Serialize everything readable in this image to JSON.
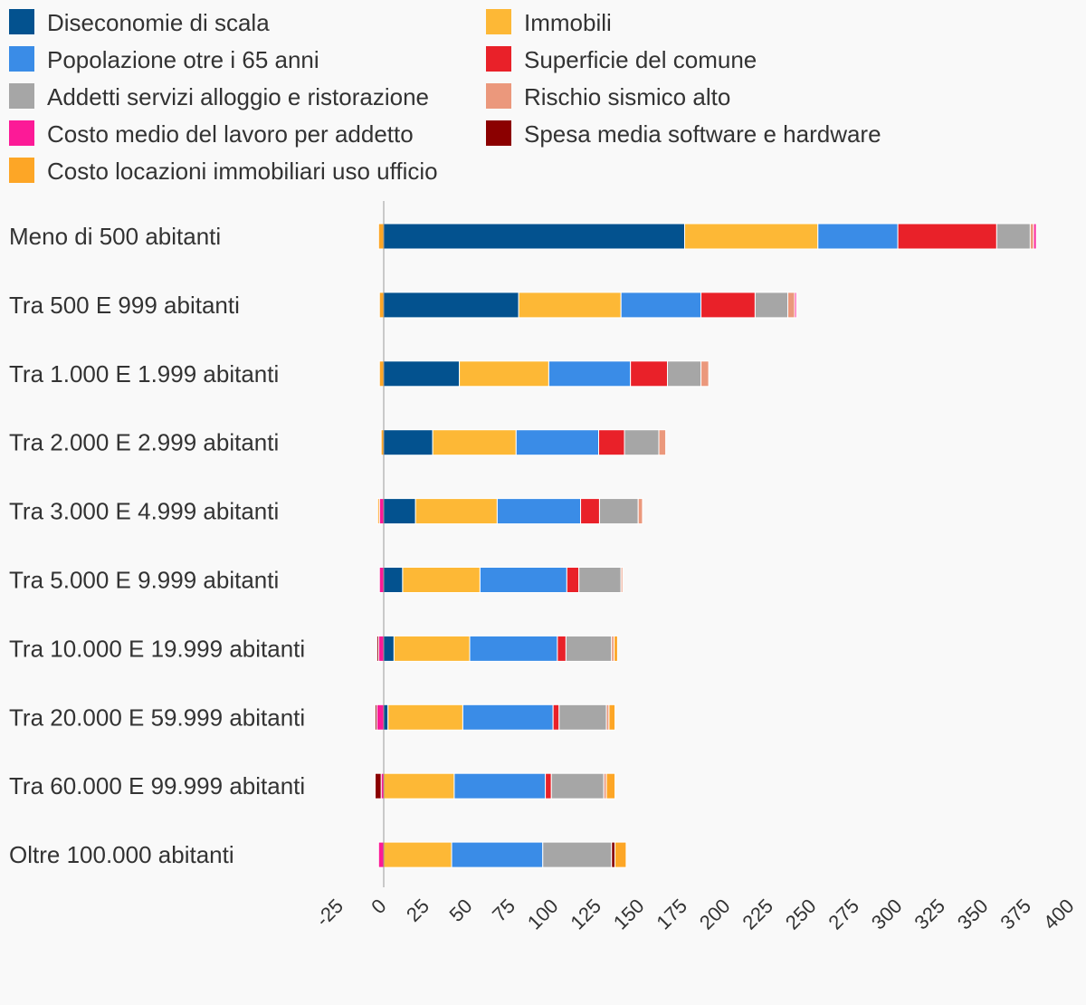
{
  "chart_data": {
    "type": "bar",
    "orientation": "horizontal",
    "stacked": true,
    "title": "",
    "xlabel": "",
    "ylabel": "",
    "xlim": [
      -25,
      400
    ],
    "ticks": [
      "-25",
      "0",
      "25",
      "50",
      "75",
      "100",
      "125",
      "150",
      "175",
      "200",
      "225",
      "250",
      "275",
      "300",
      "325",
      "350",
      "375",
      "400"
    ],
    "grid": false,
    "legend_position": "top",
    "categories": [
      "Meno di 500 abitanti",
      "Tra 500 E 999 abitanti",
      "Tra 1.000 E 1.999 abitanti",
      "Tra 2.000 E 2.999 abitanti",
      "Tra 3.000 E 4.999 abitanti",
      "Tra 5.000 E 9.999 abitanti",
      "Tra 10.000 E 19.999 abitanti",
      "Tra 20.000 E 59.999 abitanti",
      "Tra 60.000 E 99.999 abitanti",
      "Oltre 100.000 abitanti"
    ],
    "series": [
      {
        "name": "Diseconomie di scala",
        "color": "#03528f",
        "values": [
          175,
          78.5,
          44,
          28.5,
          18.5,
          11,
          6,
          2.5,
          0,
          0
        ]
      },
      {
        "name": "Immobili",
        "color": "#fdb836",
        "values": [
          77.5,
          59.5,
          52,
          48.5,
          47.5,
          45,
          44,
          43.5,
          41,
          39.5
        ]
      },
      {
        "name": "Popolazione otre i 65 anni",
        "color": "#3a8ce7",
        "values": [
          46.5,
          46.5,
          47.5,
          48,
          48.5,
          50.5,
          51,
          52.5,
          53,
          53
        ]
      },
      {
        "name": "Superficie del comune",
        "color": "#e92129",
        "values": [
          57.5,
          31.5,
          21.5,
          15,
          11,
          7,
          5,
          3.5,
          3.5,
          0
        ]
      },
      {
        "name": "Addetti servizi alloggio e ristorazione",
        "color": "#a6a6a6",
        "values": [
          19.5,
          19,
          19.5,
          20,
          22.5,
          24.5,
          26.5,
          27.5,
          30.5,
          40
        ]
      },
      {
        "name": "Rischio sismico alto",
        "color": "#eb987c",
        "values": [
          2,
          4,
          4.5,
          4,
          2.5,
          1,
          1.5,
          1.5,
          1.5,
          0
        ]
      },
      {
        "name": "Costo medio del lavoro per addetto",
        "color": "#fc1a97",
        "values": [
          1.5,
          1,
          0,
          0,
          -2.5,
          -2.5,
          -3,
          -4,
          -1.5,
          -3
        ]
      },
      {
        "name": "Spesa media software e hardware",
        "color": "#8b0000",
        "values": [
          0,
          0,
          0,
          0,
          0,
          0,
          -1,
          -1,
          -3.5,
          2
        ]
      },
      {
        "name": "Costo locazioni immobiliari uso ufficio",
        "color": "#fda626",
        "values": [
          -3,
          -2.5,
          -2.5,
          -1.5,
          -1,
          0,
          2,
          3.5,
          5,
          6.5
        ]
      }
    ]
  }
}
